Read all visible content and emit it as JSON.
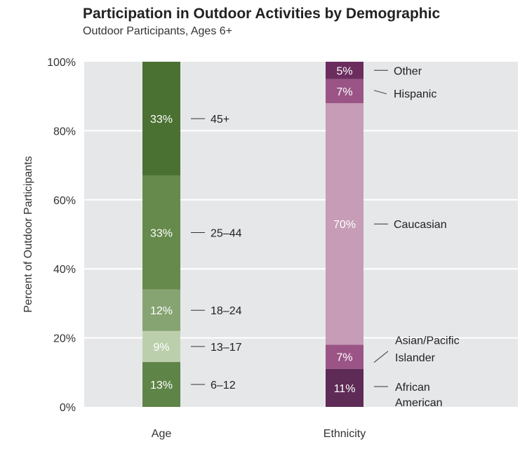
{
  "chart_data": {
    "type": "stacked-bar",
    "title": "Participation in Outdoor Activities by Demographic",
    "subtitle": "Outdoor Participants, Ages 6+",
    "ylabel": "Percent of Outdoor Participants",
    "ylim": [
      0,
      100
    ],
    "yticks": [
      "0%",
      "20%",
      "40%",
      "60%",
      "80%",
      "100%"
    ],
    "grid": true,
    "bars": [
      {
        "category": "Age",
        "segments": [
          {
            "label": "6–12",
            "value": 13,
            "text": "13%",
            "color": "#5e8447"
          },
          {
            "label": "13–17",
            "value": 9,
            "text": "9%",
            "color": "#bccfad"
          },
          {
            "label": "18–24",
            "value": 12,
            "text": "12%",
            "color": "#86a472"
          },
          {
            "label": "25–44",
            "value": 33,
            "text": "33%",
            "color": "#658a4b"
          },
          {
            "label": "45+",
            "value": 33,
            "text": "33%",
            "color": "#4a7032"
          }
        ]
      },
      {
        "category": "Ethnicity",
        "segments": [
          {
            "label": "African American",
            "value": 11,
            "text": "11%",
            "color": "#5e2a56"
          },
          {
            "label": "Asian/Pacific Islander",
            "value": 7,
            "text": "7%",
            "color": "#9a5485"
          },
          {
            "label": "Caucasian",
            "value": 70,
            "text": "70%",
            "color": "#c69cb6"
          },
          {
            "label": "Hispanic",
            "value": 7,
            "text": "7%",
            "color": "#9a5485"
          },
          {
            "label": "Other",
            "value": 5,
            "text": "5%",
            "color": "#6a2d5e"
          }
        ]
      }
    ]
  }
}
